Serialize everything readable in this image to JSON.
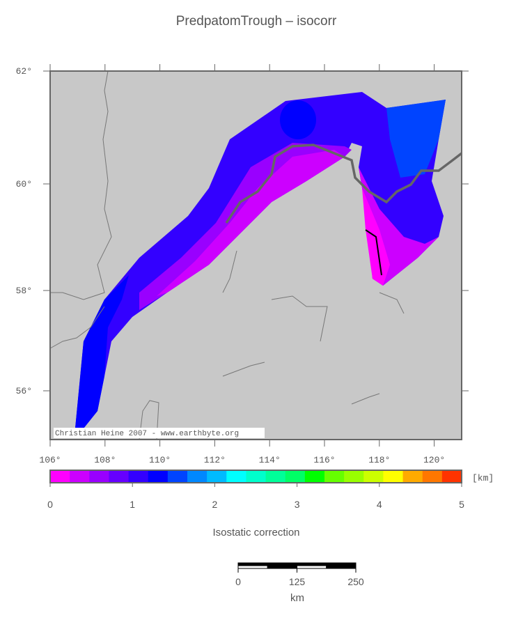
{
  "map": {
    "title": "PredpatomTrough – isocorr",
    "lat_labels": [
      "62°",
      "60°",
      "58°",
      "56°"
    ],
    "lon_labels": [
      "106°",
      "108°",
      "110°",
      "112°",
      "114°",
      "116°",
      "118°",
      "120°"
    ],
    "credit": "Christian Heine 2007 - www.earthbyte.org"
  },
  "colorbar": {
    "ticks": [
      0,
      1,
      2,
      3,
      4,
      5
    ],
    "unit": "[km]",
    "label": "Isostatic correction",
    "colors": [
      "#ff00ff",
      "#cc00ff",
      "#9900ff",
      "#6600ff",
      "#3300ff",
      "#0000ff",
      "#0044ff",
      "#0088ff",
      "#00bbff",
      "#00ffff",
      "#00ffcc",
      "#00ff99",
      "#00ff66",
      "#00ff00",
      "#66ff00",
      "#99ff00",
      "#ccff00",
      "#ffff00",
      "#ffaa00",
      "#ff7700",
      "#ff3300"
    ]
  },
  "scalebar": {
    "ticks": [
      0,
      125,
      250
    ],
    "unit": "km"
  }
}
